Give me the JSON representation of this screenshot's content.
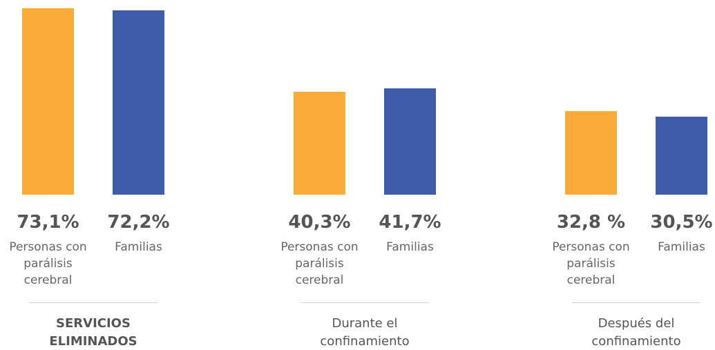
{
  "chart_data": {
    "type": "bar",
    "categories": [
      "SERVICIOS ELIMINADOS",
      "Durante el confinamiento",
      "Después del confinamiento"
    ],
    "series": [
      {
        "name": "Personas con parálisis cerebral",
        "color": "#fbab3a",
        "values": [
          73.1,
          40.3,
          32.8
        ],
        "value_labels": [
          "73,1%",
          "40,3%",
          "32,8 %"
        ]
      },
      {
        "name": "Familias",
        "color": "#3f5ca8",
        "values": [
          72.2,
          41.7,
          30.5
        ],
        "value_labels": [
          "72,2%",
          "41,7%",
          "30,5%"
        ]
      }
    ]
  }
}
